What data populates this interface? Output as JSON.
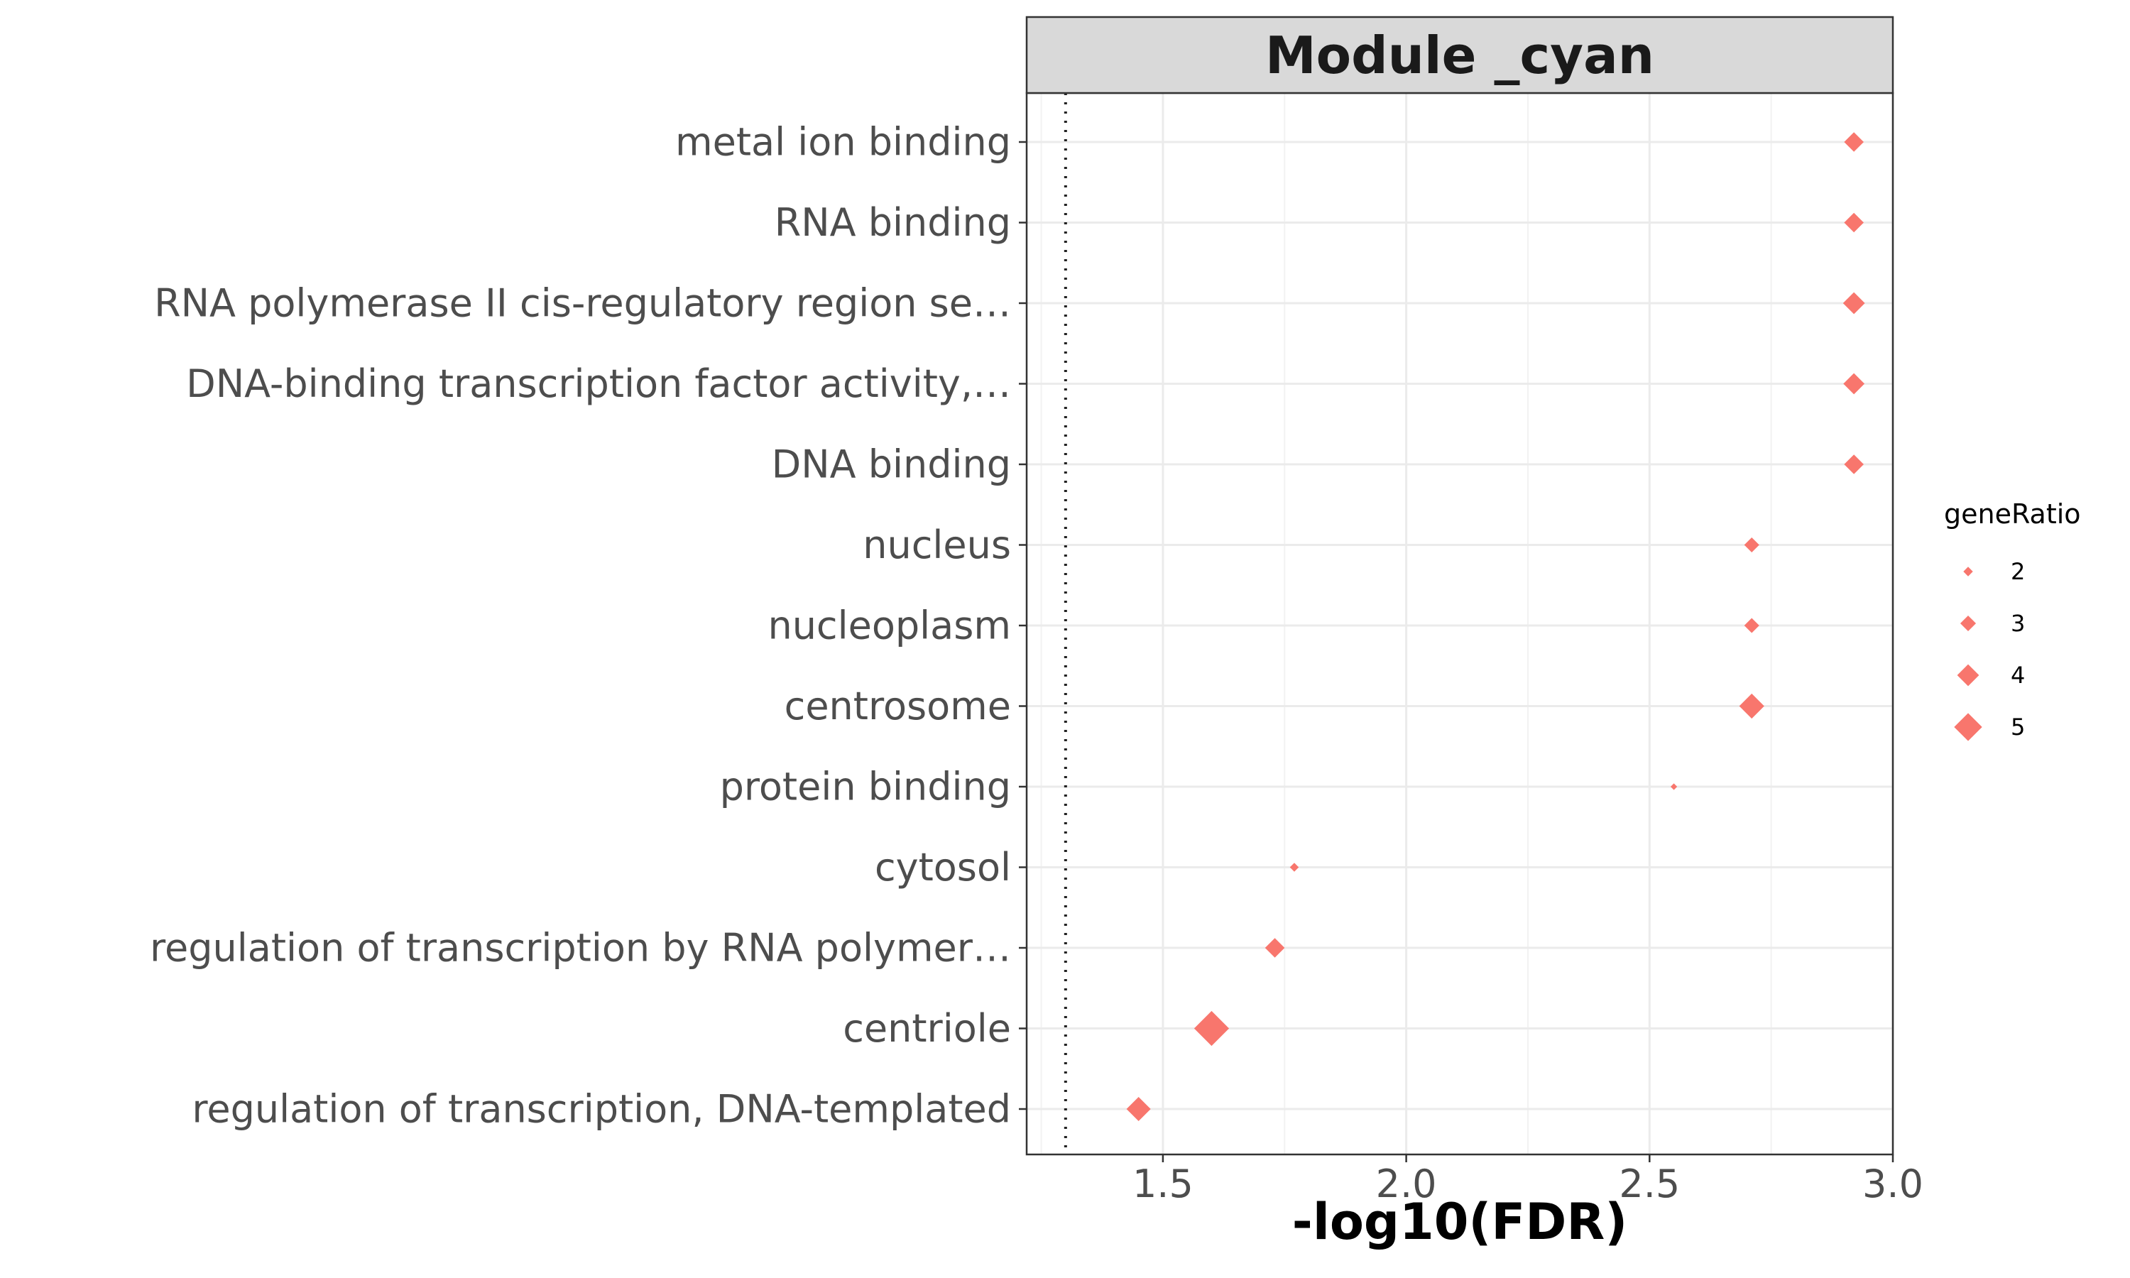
{
  "chart_data": {
    "type": "scatter",
    "title": "Module _cyan",
    "xlabel": "-log10(FDR)",
    "ylabel": "",
    "xlim": [
      1.22,
      3.0
    ],
    "xticks": [
      "1.5",
      "2.0",
      "2.5",
      "3.0"
    ],
    "reference_line": 1.3,
    "grid": true,
    "marker": "diamond",
    "color": "#F8766D",
    "legend": {
      "title": "geneRatio",
      "placement": "right",
      "entries": [
        "2",
        "3",
        "4",
        "5"
      ]
    },
    "points": [
      {
        "term": "metal ion binding",
        "x": 2.92,
        "size": 3
      },
      {
        "term": "RNA binding",
        "x": 2.92,
        "size": 3
      },
      {
        "term": "RNA polymerase II cis-regulatory region se…",
        "x": 2.92,
        "size": 3.3
      },
      {
        "term": "DNA-binding transcription factor activity,…",
        "x": 2.92,
        "size": 3.2
      },
      {
        "term": "DNA binding",
        "x": 2.92,
        "size": 3
      },
      {
        "term": "nucleus",
        "x": 2.71,
        "size": 2.4
      },
      {
        "term": "nucleoplasm",
        "x": 2.71,
        "size": 2.4
      },
      {
        "term": "centrosome",
        "x": 2.71,
        "size": 3.7
      },
      {
        "term": "protein binding",
        "x": 2.55,
        "size": 1.3
      },
      {
        "term": "cytosol",
        "x": 1.77,
        "size": 1.6
      },
      {
        "term": "regulation of transcription by RNA polymer…",
        "x": 1.73,
        "size": 3
      },
      {
        "term": "centriole",
        "x": 1.6,
        "size": 5
      },
      {
        "term": "regulation of transcription, DNA-templated",
        "x": 1.45,
        "size": 3.6
      }
    ]
  }
}
